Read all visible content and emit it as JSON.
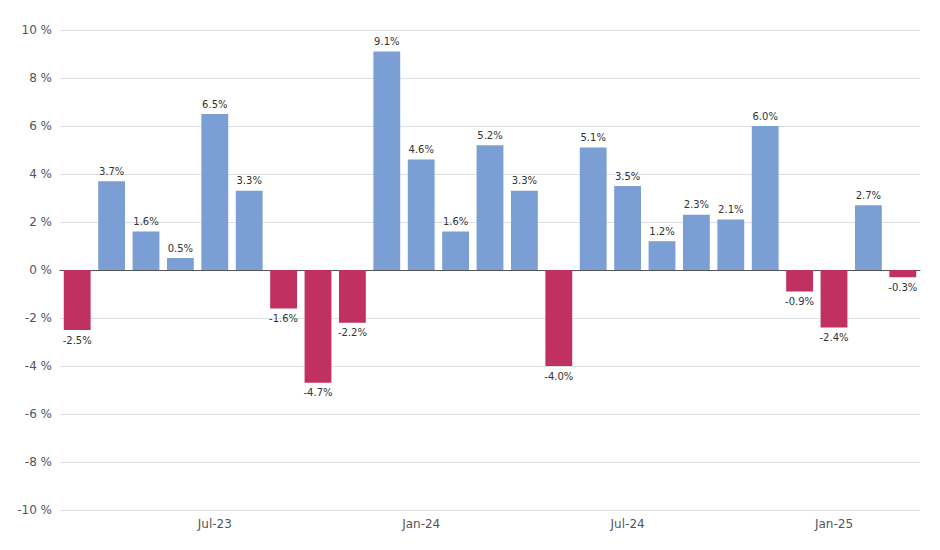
{
  "chart_data": {
    "type": "bar",
    "categories": [
      null,
      null,
      null,
      null,
      "Jul-23",
      null,
      null,
      null,
      null,
      null,
      "Jan-24",
      null,
      null,
      null,
      null,
      null,
      "Jul-24",
      null,
      null,
      null,
      null,
      null,
      "Jan-25",
      null,
      null
    ],
    "values": [
      -2.5,
      3.7,
      1.6,
      0.5,
      6.5,
      3.3,
      -1.6,
      -4.7,
      -2.2,
      9.1,
      4.6,
      1.6,
      5.2,
      3.3,
      -4.0,
      5.1,
      3.5,
      1.2,
      2.3,
      2.1,
      6.0,
      -0.9,
      -2.4,
      2.7,
      -0.3
    ],
    "value_labels": [
      "-2.5%",
      "3.7%",
      "1.6%",
      "0.5%",
      "6.5%",
      "3.3%",
      "-1.6%",
      "-4.7%",
      "-2.2%",
      "9.1%",
      "4.6%",
      "1.6%",
      "5.2%",
      "3.3%",
      "-4.0%",
      "5.1%",
      "3.5%",
      "1.2%",
      "2.3%",
      "2.1%",
      "6.0%",
      "-0.9%",
      "-2.4%",
      "2.7%",
      "-0.3%"
    ],
    "colors": [
      "#C03060",
      "#7B9FD4",
      "#7B9FD4",
      "#7B9FD4",
      "#7B9FD4",
      "#7B9FD4",
      "#C03060",
      "#C03060",
      "#C03060",
      "#7B9FD4",
      "#7B9FD4",
      "#7B9FD4",
      "#7B9FD4",
      "#7B9FD4",
      "#C03060",
      "#7B9FD4",
      "#7B9FD4",
      "#7B9FD4",
      "#7B9FD4",
      "#7B9FD4",
      "#7B9FD4",
      "#C03060",
      "#C03060",
      "#7B9FD4",
      "#C03060"
    ],
    "ylim": [
      -10,
      10
    ],
    "yticks": [
      {
        "value": -10,
        "label": "-10 %"
      },
      {
        "value": -8,
        "label": "-8 %"
      },
      {
        "value": -6,
        "label": "-6 %"
      },
      {
        "value": -4,
        "label": "-4 %"
      },
      {
        "value": -2,
        "label": "-2 %"
      },
      {
        "value": 0,
        "label": "0 %"
      },
      {
        "value": 2,
        "label": "2 %"
      },
      {
        "value": 4,
        "label": "4 %"
      },
      {
        "value": 6,
        "label": "6 %"
      },
      {
        "value": 8,
        "label": "8 %"
      },
      {
        "value": 10,
        "label": "10 %"
      }
    ],
    "grid": true,
    "data_labels": true
  }
}
